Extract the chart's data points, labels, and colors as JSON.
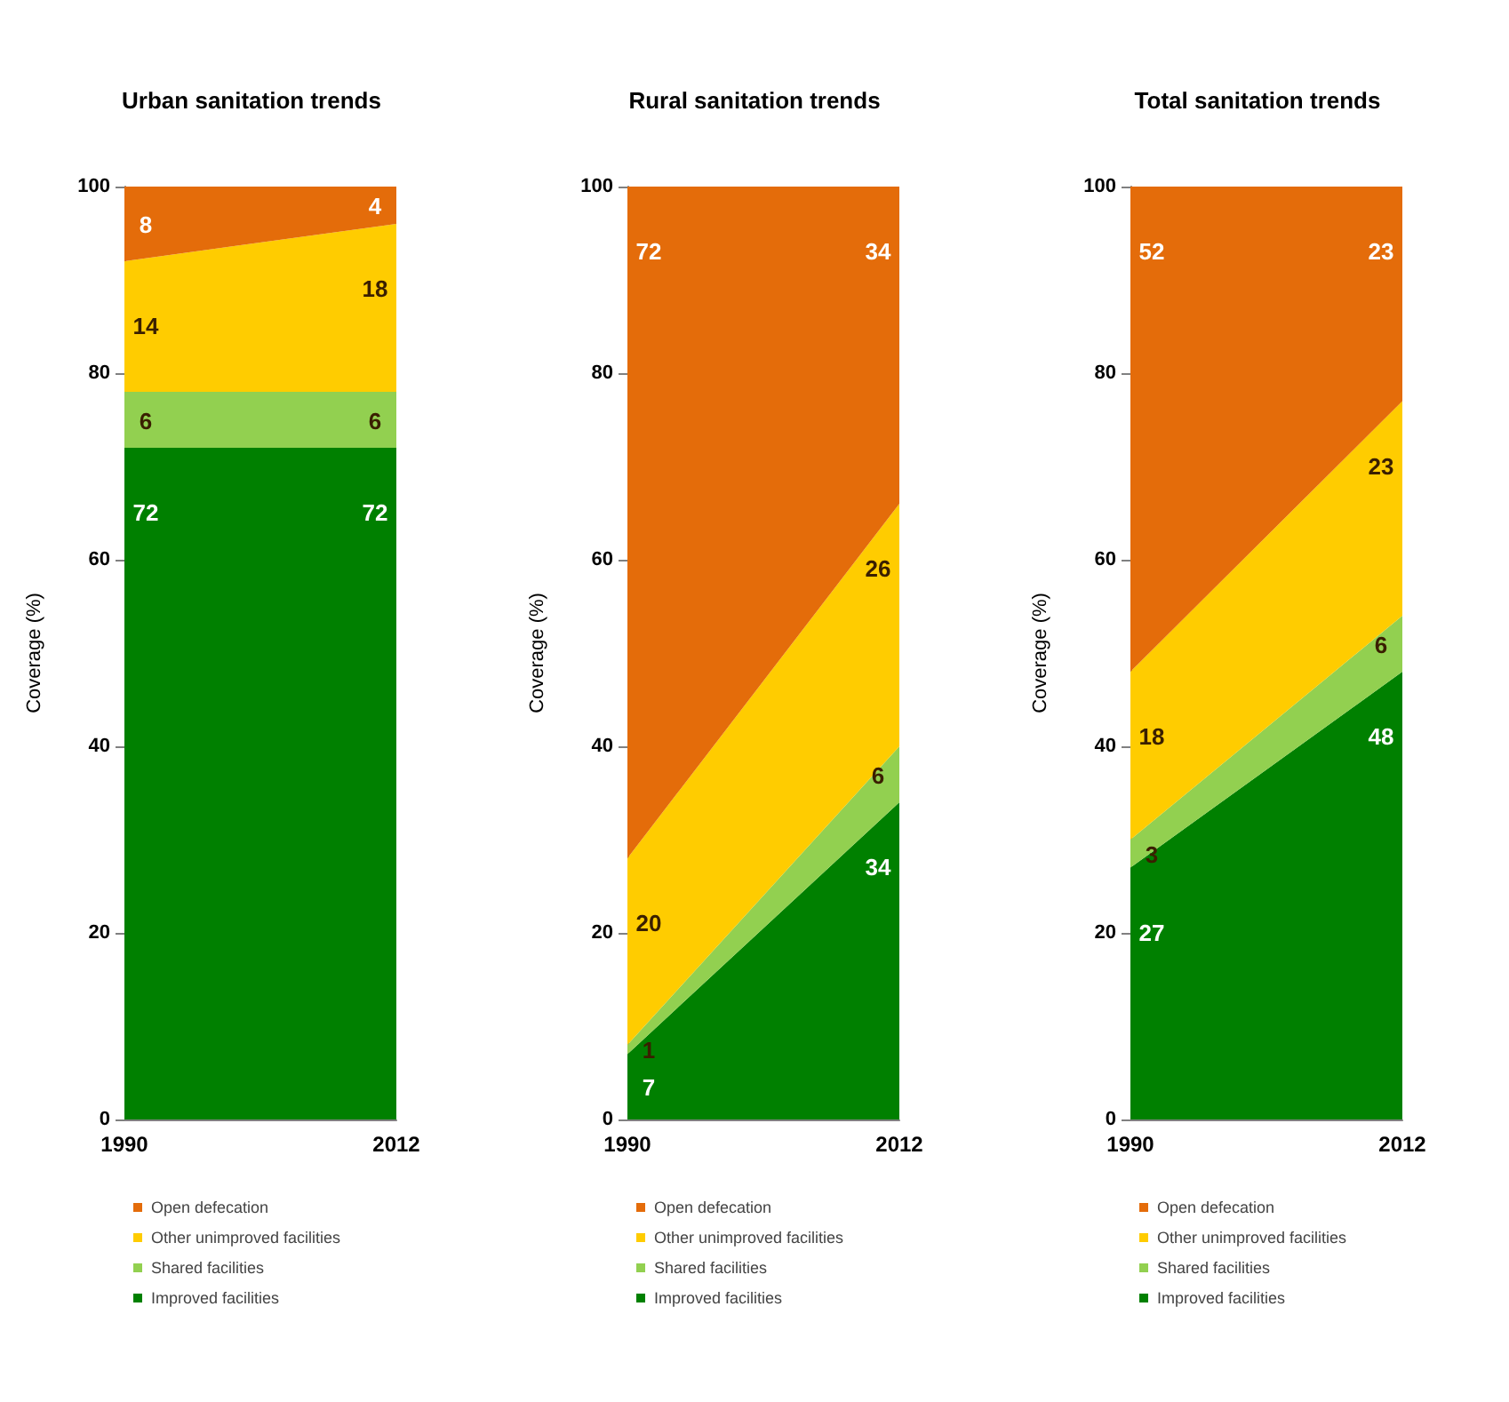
{
  "chart_data": [
    {
      "type": "area",
      "title": "Urban sanitation trends",
      "ylabel": "Coverage (%)",
      "categories": [
        "1990",
        "2012"
      ],
      "stacked": true,
      "data_labels": true,
      "ylim": [
        0,
        100
      ],
      "yticks": [
        0,
        20,
        40,
        60,
        80,
        100
      ],
      "grid": false,
      "legend": "bottom",
      "series": [
        {
          "name": "Improved facilities",
          "color": "#008000",
          "values": [
            72,
            72
          ]
        },
        {
          "name": "Shared facilities",
          "color": "#92d050",
          "values": [
            6,
            6
          ]
        },
        {
          "name": "Other unimproved facilities",
          "color": "#ffcc00",
          "values": [
            14,
            18
          ]
        },
        {
          "name": "Open defecation",
          "color": "#e46c0a",
          "values": [
            8,
            4
          ]
        }
      ]
    },
    {
      "type": "area",
      "title": "Rural sanitation trends",
      "ylabel": "Coverage (%)",
      "categories": [
        "1990",
        "2012"
      ],
      "stacked": true,
      "data_labels": true,
      "ylim": [
        0,
        100
      ],
      "yticks": [
        0,
        20,
        40,
        60,
        80,
        100
      ],
      "grid": false,
      "legend": "bottom",
      "series": [
        {
          "name": "Improved facilities",
          "color": "#008000",
          "values": [
            7,
            34
          ]
        },
        {
          "name": "Shared facilities",
          "color": "#92d050",
          "values": [
            1,
            6
          ]
        },
        {
          "name": "Other unimproved facilities",
          "color": "#ffcc00",
          "values": [
            20,
            26
          ]
        },
        {
          "name": "Open defecation",
          "color": "#e46c0a",
          "values": [
            72,
            34
          ]
        }
      ]
    },
    {
      "type": "area",
      "title": "Total sanitation trends",
      "ylabel": "Coverage (%)",
      "categories": [
        "1990",
        "2012"
      ],
      "stacked": true,
      "data_labels": true,
      "ylim": [
        0,
        100
      ],
      "yticks": [
        0,
        20,
        40,
        60,
        80,
        100
      ],
      "grid": false,
      "legend": "bottom",
      "series": [
        {
          "name": "Improved facilities",
          "color": "#008000",
          "values": [
            27,
            48
          ]
        },
        {
          "name": "Shared facilities",
          "color": "#92d050",
          "values": [
            3,
            6
          ]
        },
        {
          "name": "Other unimproved facilities",
          "color": "#ffcc00",
          "values": [
            18,
            23
          ]
        },
        {
          "name": "Open defecation",
          "color": "#e46c0a",
          "values": [
            52,
            23
          ]
        }
      ]
    }
  ]
}
